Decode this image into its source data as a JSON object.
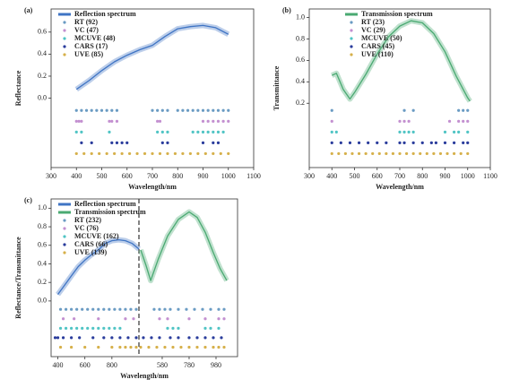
{
  "chart_data": [
    {
      "type": "line",
      "label": "(a)",
      "xlabel": "Wavelength/nm",
      "ylabel": "Reflectance",
      "xlim": [
        300,
        1100
      ],
      "xticks": [
        300,
        400,
        500,
        600,
        700,
        800,
        900,
        1000,
        1100
      ],
      "ylim": [
        -0.63,
        0.81
      ],
      "yticks": [
        0.0,
        0.2,
        0.4,
        0.6
      ],
      "series": [
        {
          "name": "Reflection spectrum",
          "color": "#3f74c4",
          "x": [
            400,
            450,
            500,
            550,
            600,
            650,
            700,
            750,
            800,
            850,
            900,
            950,
            1000
          ],
          "values": [
            0.08,
            0.16,
            0.25,
            0.33,
            0.39,
            0.44,
            0.48,
            0.56,
            0.63,
            0.65,
            0.66,
            0.64,
            0.58
          ]
        }
      ],
      "selections": [
        {
          "name": "RT (92)",
          "color": "#6a9bc3",
          "x": [
            400,
            420,
            440,
            460,
            480,
            500,
            520,
            540,
            560,
            700,
            720,
            740,
            760,
            800,
            820,
            840,
            860,
            880,
            900,
            920,
            940,
            960,
            980,
            1000
          ]
        },
        {
          "name": "VC (47)",
          "color": "#c38fd0",
          "x": [
            400,
            410,
            420,
            530,
            540,
            560,
            720,
            730,
            900,
            920,
            940,
            960,
            980,
            1000
          ]
        },
        {
          "name": "MCUVE (48)",
          "color": "#4fc4c4",
          "x": [
            400,
            420,
            530,
            720,
            740,
            760,
            860,
            880,
            900,
            920,
            940,
            960,
            980
          ]
        },
        {
          "name": "CARS (17)",
          "color": "#2a3c9c",
          "x": [
            420,
            460,
            540,
            560,
            580,
            600,
            740,
            760,
            900,
            940,
            960
          ]
        },
        {
          "name": "UVE (85)",
          "color": "#d6b04a",
          "x": [
            400,
            430,
            460,
            490,
            520,
            550,
            580,
            610,
            640,
            670,
            700,
            730,
            760,
            790,
            820,
            850,
            880,
            910,
            940,
            970,
            1000
          ]
        }
      ]
    },
    {
      "type": "line",
      "label": "(b)",
      "xlabel": "Wavelength/nm",
      "ylabel": "Transmittance",
      "xlim": [
        300,
        1100
      ],
      "xticks": [
        300,
        400,
        500,
        600,
        700,
        800,
        900,
        1000,
        1100
      ],
      "ylim": [
        -0.4,
        1.08
      ],
      "yticks": [
        0.2,
        0.4,
        0.6,
        0.8,
        1.0
      ],
      "series": [
        {
          "name": "Transmission spectrum",
          "color": "#4aaa72",
          "x": [
            400,
            420,
            450,
            480,
            500,
            550,
            600,
            650,
            700,
            750,
            800,
            850,
            900,
            950,
            1000,
            1010
          ],
          "values": [
            0.46,
            0.48,
            0.33,
            0.24,
            0.3,
            0.47,
            0.66,
            0.82,
            0.92,
            0.97,
            0.95,
            0.85,
            0.68,
            0.45,
            0.25,
            0.22
          ]
        }
      ],
      "selections": [
        {
          "name": "RT (23)",
          "color": "#6a9bc3",
          "x": [
            400,
            720,
            760,
            960,
            980,
            1000
          ]
        },
        {
          "name": "VC (29)",
          "color": "#c38fd0",
          "x": [
            400,
            700,
            720,
            740,
            920,
            960,
            980,
            1000
          ]
        },
        {
          "name": "MCUVE (50)",
          "color": "#4fc4c4",
          "x": [
            400,
            420,
            700,
            720,
            740,
            760,
            900,
            940,
            960,
            1000
          ]
        },
        {
          "name": "CARS (45)",
          "color": "#2a3c9c",
          "x": [
            400,
            440,
            480,
            520,
            560,
            600,
            640,
            700,
            720,
            760,
            800,
            840,
            860,
            900,
            940,
            980,
            1000
          ]
        },
        {
          "name": "UVE (110)",
          "color": "#d6b04a",
          "x": [
            400,
            430,
            460,
            490,
            520,
            550,
            580,
            610,
            640,
            670,
            700,
            730,
            760,
            790,
            820,
            850,
            880,
            910,
            940,
            970,
            1000
          ]
        }
      ]
    },
    {
      "type": "line",
      "label": "(c)",
      "xlabel": "Wavelength/nm",
      "ylabel": "Reflectance/Transmittance",
      "xlim": [
        350,
        1000
      ],
      "xticks": [
        400,
        600,
        800
      ],
      "x2lim": [
        407,
        1140
      ],
      "x2ticks": [
        580,
        780,
        980
      ],
      "ylim": [
        -0.6,
        1.1
      ],
      "yticks": [
        0.0,
        0.2,
        0.4,
        0.6,
        0.8,
        1.0
      ],
      "series": [
        {
          "name": "Reflection spectrum",
          "color": "#3f74c4",
          "x": [
            400,
            450,
            500,
            550,
            600,
            650,
            700,
            750,
            800,
            850,
            900,
            950,
            1000
          ],
          "values": [
            0.07,
            0.17,
            0.27,
            0.37,
            0.44,
            0.5,
            0.55,
            0.62,
            0.65,
            0.66,
            0.65,
            0.62,
            0.56
          ]
        },
        {
          "name": "Transmission spectrum",
          "color": "#4aaa72",
          "axis": "x2",
          "x": [
            420,
            460,
            494,
            550,
            620,
            700,
            780,
            840,
            900,
            960,
            1010,
            1060
          ],
          "values": [
            0.55,
            0.38,
            0.22,
            0.45,
            0.7,
            0.88,
            0.96,
            0.9,
            0.74,
            0.52,
            0.35,
            0.22
          ]
        }
      ],
      "selections": [
        {
          "name": "RT (232)",
          "color": "#6a9bc3",
          "x": [
            420,
            460,
            500,
            540,
            580,
            620,
            660,
            700,
            740,
            780,
            820,
            860,
            900,
            940,
            980
          ],
          "x2": [
            520,
            560,
            600,
            640,
            700,
            760,
            820,
            880,
            940,
            1000,
            1040
          ]
        },
        {
          "name": "VC (76)",
          "color": "#c38fd0",
          "x": [
            440,
            520,
            700,
            900,
            960
          ],
          "x2": [
            560,
            620,
            780,
            900,
            1000,
            1040
          ]
        },
        {
          "name": "MCUVE (162)",
          "color": "#4fc4c4",
          "x": [
            420,
            460,
            500,
            540,
            580,
            620,
            660,
            700,
            740,
            780,
            820,
            860
          ],
          "x2": [
            620,
            660,
            700,
            900,
            940,
            1000
          ]
        },
        {
          "name": "CARS (66)",
          "color": "#2a3c9c",
          "x": [
            380,
            400,
            440,
            500,
            560,
            660,
            740,
            800,
            860,
            920,
            980
          ],
          "x2": [
            440,
            500,
            560,
            640,
            700,
            780,
            840,
            900,
            960,
            1020
          ]
        },
        {
          "name": "UVE (139)",
          "color": "#d6b04a",
          "x": [
            420,
            500,
            600,
            700,
            800,
            860,
            900,
            940,
            980
          ],
          "x2": [
            420,
            480,
            540,
            600,
            660,
            720,
            780,
            840,
            900,
            960,
            1000,
            1040
          ]
        }
      ]
    }
  ]
}
